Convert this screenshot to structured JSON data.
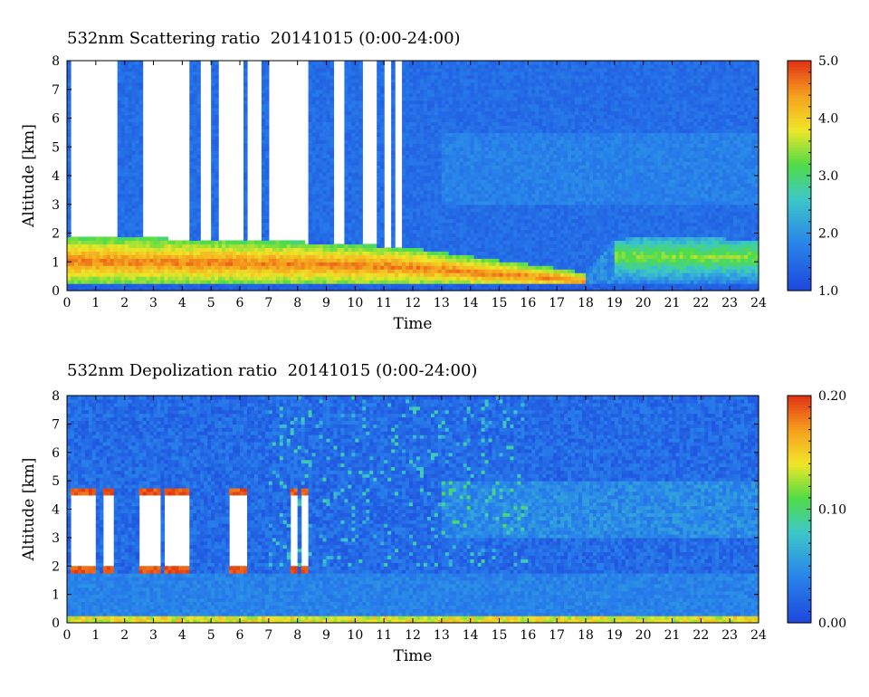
{
  "chart_data": [
    {
      "type": "heatmap",
      "title": "532nm Scattering ratio  20141015 (0:00-24:00)",
      "xlabel": "Time",
      "ylabel": "Altitude [km]",
      "xlim": [
        0,
        24
      ],
      "ylim": [
        0,
        8
      ],
      "x_ticks": [
        "0",
        "1",
        "2",
        "3",
        "4",
        "5",
        "6",
        "7",
        "8",
        "9",
        "10",
        "11",
        "12",
        "13",
        "14",
        "15",
        "16",
        "17",
        "18",
        "19",
        "20",
        "21",
        "22",
        "23",
        "24"
      ],
      "y_ticks": [
        "0",
        "1",
        "2",
        "3",
        "4",
        "5",
        "6",
        "7",
        "8"
      ],
      "colorbar": {
        "min": 1.0,
        "max": 5.0,
        "labels": [
          "1.0",
          "2.0",
          "3.0",
          "4.0",
          "5.0"
        ]
      },
      "features": {
        "cloud_gaps_hours": [
          [
            0.1,
            1.8
          ],
          [
            2.6,
            4.3
          ],
          [
            4.6,
            5.0
          ],
          [
            5.2,
            6.1
          ],
          [
            6.3,
            6.7
          ],
          [
            7.0,
            8.4
          ],
          [
            9.3,
            9.6
          ],
          [
            10.3,
            10.8
          ],
          [
            11.0,
            11.3
          ],
          [
            11.4,
            11.6
          ]
        ],
        "boundary_layer_top_km": [
          [
            0,
            1.9
          ],
          [
            8,
            1.7
          ],
          [
            12,
            1.5
          ],
          [
            14,
            1.2
          ],
          [
            17,
            0.8
          ],
          [
            18,
            0.6
          ],
          [
            19,
            1.8
          ],
          [
            22,
            1.9
          ],
          [
            24,
            1.7
          ]
        ]
      }
    },
    {
      "type": "heatmap",
      "title": "532nm Depolization ratio  20141015 (0:00-24:00)",
      "xlabel": "Time",
      "ylabel": "Altitude [km]",
      "xlim": [
        0,
        24
      ],
      "ylim": [
        0,
        8
      ],
      "x_ticks": [
        "0",
        "1",
        "2",
        "3",
        "4",
        "5",
        "6",
        "7",
        "8",
        "9",
        "10",
        "11",
        "12",
        "13",
        "14",
        "15",
        "16",
        "17",
        "18",
        "19",
        "20",
        "21",
        "22",
        "23",
        "24"
      ],
      "y_ticks": [
        "0",
        "1",
        "2",
        "3",
        "4",
        "5",
        "6",
        "7",
        "8"
      ],
      "colorbar": {
        "min": 0.0,
        "max": 0.2,
        "labels": [
          "0.00",
          "0.10",
          "0.20"
        ]
      },
      "features": {
        "cloud_columns_hours": [
          [
            0.1,
            1.0
          ],
          [
            1.3,
            1.6
          ],
          [
            2.5,
            3.2
          ],
          [
            3.4,
            3.7
          ],
          [
            3.8,
            4.1
          ],
          [
            4.1,
            4.3
          ],
          [
            5.6,
            6.2
          ],
          [
            7.7,
            8.0
          ],
          [
            8.1,
            8.4
          ]
        ],
        "cloud_altitude_km": [
          1.8,
          4.8
        ]
      }
    }
  ],
  "colors": {
    "low": "#1e50dc",
    "mid": "#3cd2b4",
    "green": "#50dc3c",
    "yellow": "#f0e628",
    "orange": "#f5a01e",
    "high": "#e13214"
  }
}
